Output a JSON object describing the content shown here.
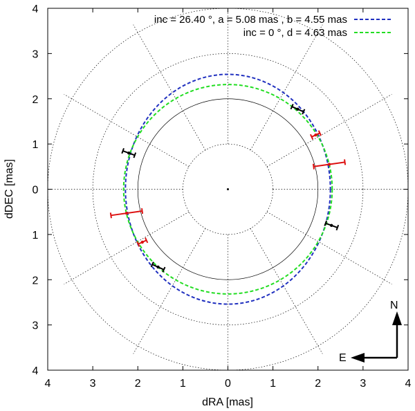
{
  "chart_data": {
    "type": "scatter",
    "xlabel": "dRA [mas]",
    "ylabel": "dDEC [mas]",
    "xlim": [
      4,
      -4
    ],
    "ylim": [
      -4,
      4
    ],
    "x_tick_labels": [
      "4",
      "3",
      "2",
      "1",
      "0",
      "1",
      "2",
      "3",
      "4"
    ],
    "y_tick_labels": [
      "4",
      "3",
      "2",
      "1",
      "0",
      "1",
      "2",
      "3",
      "4"
    ],
    "x_tick_values": [
      4,
      3,
      2,
      1,
      0,
      -1,
      -2,
      -3,
      -4
    ],
    "y_tick_values": [
      4,
      3,
      2,
      1,
      0,
      -1,
      -2,
      -3,
      -4
    ],
    "polar_grid": {
      "circle_radii_mas": [
        1,
        2,
        3,
        4
      ],
      "spoke_angles_deg": [
        0,
        30,
        60,
        90,
        120,
        150,
        180,
        210,
        240,
        270,
        300,
        330
      ]
    },
    "series": [
      {
        "name": "inc = 26.40 °, a = 5.08 mas , b = 4.55 mas",
        "kind": "ellipse",
        "color": "#1f2fbf",
        "semi_axis_ra": 2.275,
        "semi_axis_dec": 2.54
      },
      {
        "name": "inc = 0 °, d = 4.63 mas",
        "kind": "circle",
        "color": "#22dd22",
        "radius": 2.315
      },
      {
        "name": "black measurements",
        "kind": "errorbar_points",
        "color": "#000000",
        "points": [
          {
            "x": 1.55,
            "y": 1.77,
            "err": 0.14,
            "angle_deg": 24
          },
          {
            "x": -2.2,
            "y": 0.8,
            "err": 0.14,
            "angle_deg": 20
          },
          {
            "x": 2.3,
            "y": -0.8,
            "err": 0.14,
            "angle_deg": 20
          },
          {
            "x": -1.55,
            "y": -1.72,
            "err": 0.14,
            "angle_deg": 24
          }
        ]
      },
      {
        "name": "red measurements",
        "kind": "errorbar_points",
        "color": "#dd1111",
        "points": [
          {
            "x": 1.95,
            "y": 1.2,
            "err": 0.1,
            "angle_deg": -25
          },
          {
            "x": 2.25,
            "y": 0.55,
            "err": 0.35,
            "angle_deg": -8
          },
          {
            "x": -2.25,
            "y": -0.53,
            "err": 0.35,
            "angle_deg": -8
          },
          {
            "x": -1.9,
            "y": -1.17,
            "err": 0.1,
            "angle_deg": -25
          }
        ]
      }
    ],
    "compass": {
      "north_label": "N",
      "east_label": "E"
    }
  }
}
